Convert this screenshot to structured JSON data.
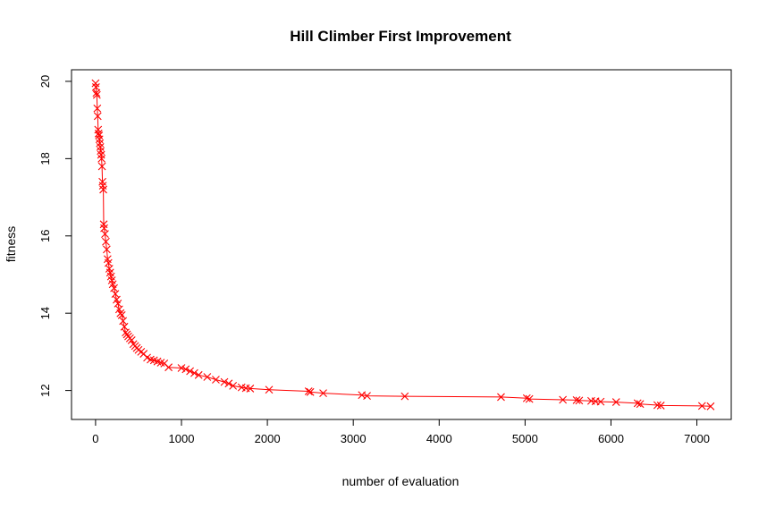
{
  "chart_data": {
    "type": "line",
    "title": "Hill Climber First Improvement",
    "xlabel": "number of evaluation",
    "ylabel": "fitness",
    "xlim": [
      -280,
      7400
    ],
    "ylim": [
      11.25,
      20.3
    ],
    "x_ticks": [
      0,
      1000,
      2000,
      3000,
      4000,
      5000,
      6000,
      7000
    ],
    "y_ticks": [
      12,
      14,
      16,
      18,
      20
    ],
    "grid": false,
    "legend": "none",
    "marker": "x",
    "color": "#ff0000",
    "x": [
      0,
      5,
      10,
      15,
      20,
      25,
      30,
      35,
      40,
      45,
      50,
      55,
      60,
      65,
      70,
      75,
      80,
      85,
      90,
      95,
      100,
      110,
      120,
      130,
      140,
      150,
      160,
      170,
      180,
      190,
      200,
      215,
      230,
      245,
      260,
      275,
      290,
      305,
      320,
      335,
      350,
      365,
      380,
      400,
      420,
      440,
      460,
      480,
      500,
      530,
      560,
      600,
      640,
      680,
      720,
      760,
      800,
      850,
      1000,
      1050,
      1100,
      1150,
      1200,
      1300,
      1400,
      1500,
      1550,
      1600,
      1700,
      1750,
      1800,
      2020,
      2480,
      2500,
      2650,
      3100,
      3160,
      3600,
      4720,
      5020,
      5050,
      5440,
      5600,
      5630,
      5770,
      5820,
      5880,
      6060,
      6310,
      6340,
      6540,
      6580,
      7060,
      7160
    ],
    "y": [
      19.95,
      19.85,
      19.7,
      19.65,
      19.3,
      19.1,
      18.75,
      18.65,
      18.6,
      18.5,
      18.4,
      18.3,
      18.2,
      18.1,
      18.0,
      17.8,
      17.4,
      17.3,
      17.2,
      16.3,
      16.2,
      16.05,
      15.85,
      15.65,
      15.4,
      15.3,
      15.15,
      15.05,
      14.95,
      14.85,
      14.75,
      14.65,
      14.5,
      14.35,
      14.25,
      14.1,
      14.0,
      13.95,
      13.8,
      13.65,
      13.5,
      13.45,
      13.4,
      13.35,
      13.3,
      13.2,
      13.15,
      13.1,
      13.05,
      13.0,
      12.95,
      12.85,
      12.8,
      12.78,
      12.75,
      12.72,
      12.7,
      12.6,
      12.58,
      12.55,
      12.5,
      12.45,
      12.4,
      12.35,
      12.28,
      12.22,
      12.18,
      12.12,
      12.08,
      12.06,
      12.05,
      12.02,
      11.98,
      11.96,
      11.93,
      11.88,
      11.86,
      11.85,
      11.83,
      11.8,
      11.78,
      11.76,
      11.75,
      11.74,
      11.73,
      11.72,
      11.71,
      11.7,
      11.67,
      11.65,
      11.62,
      11.61,
      11.6,
      11.59
    ]
  }
}
